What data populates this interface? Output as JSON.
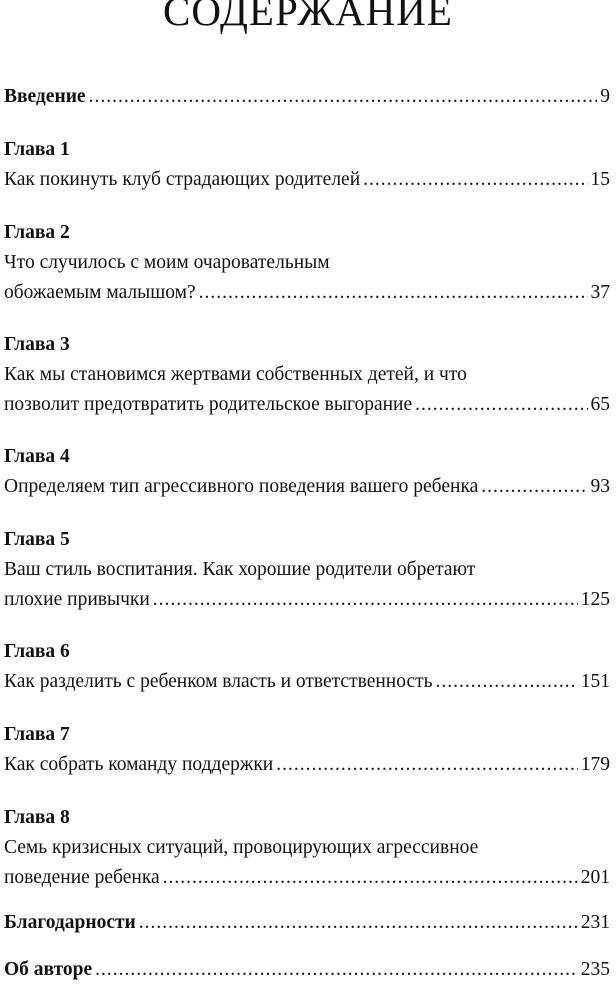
{
  "title": "СОДЕРЖАНИЕ",
  "intro": {
    "label": "Введение",
    "page": "9"
  },
  "chapters": [
    {
      "heading": "Глава 1",
      "lines": [
        "Как покинуть клуб страдающих родителей"
      ],
      "page": "15"
    },
    {
      "heading": "Глава 2",
      "lines": [
        "Что случилось с моим очаровательным",
        "обожаемым малышом?"
      ],
      "page": "37"
    },
    {
      "heading": "Глава 3",
      "lines": [
        "Как мы становимся жертвами собственных детей, и что",
        "позволит предотвратить родительское выгорание"
      ],
      "page": "65"
    },
    {
      "heading": "Глава 4",
      "lines": [
        "Определяем тип агрессивного поведения вашего ребенка"
      ],
      "page": "93"
    },
    {
      "heading": "Глава 5",
      "lines": [
        "Ваш стиль воспитания. Как хорошие родители обретают",
        "плохие привычки"
      ],
      "page": "125"
    },
    {
      "heading": "Глава 6",
      "lines": [
        "Как разделить с ребенком власть и ответственность"
      ],
      "page": "151"
    },
    {
      "heading": "Глава 7",
      "lines": [
        "Как собрать команду поддержки"
      ],
      "page": "179"
    },
    {
      "heading": "Глава 8",
      "lines": [
        "Семь кризисных ситуаций, провоцирующих агрессивное",
        "поведение ребенка"
      ],
      "page": "201"
    }
  ],
  "thanks": {
    "label": "Благодарности",
    "page": "231"
  },
  "about": {
    "label": "Об авторе",
    "page": "235"
  }
}
